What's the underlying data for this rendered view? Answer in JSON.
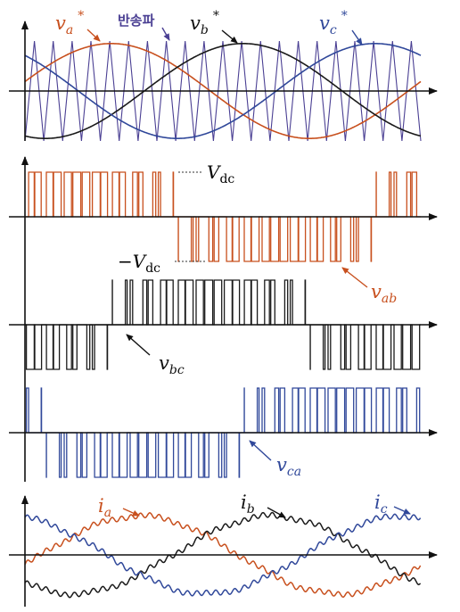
{
  "colors": {
    "phase_a": "#c8501e",
    "phase_b": "#1a1a1a",
    "phase_c": "#30489a",
    "carrier": "#4a3f93",
    "axis": "#111111",
    "dashed": "#333333"
  },
  "reference_panel": {
    "va_symbol": "v",
    "va_sub": "a",
    "va_star": "*",
    "vb_symbol": "v",
    "vb_sub": "b",
    "vb_star": "*",
    "vc_symbol": "v",
    "vc_sub": "c",
    "vc_star": "*",
    "carrier_label": "반송파"
  },
  "line_voltage_panel": {
    "vdc_symbol": "V",
    "vdc_sub": "dc",
    "neg_vdc_sign": "−",
    "neg_vdc_symbol": "V",
    "neg_vdc_sub": "dc",
    "vab_symbol": "v",
    "vab_sub": "ab",
    "vbc_symbol": "v",
    "vbc_sub": "bc",
    "vca_symbol": "v",
    "vca_sub": "ca"
  },
  "current_panel": {
    "ia_symbol": "i",
    "ia_sub": "a",
    "ib_symbol": "i",
    "ib_sub": "b",
    "ic_symbol": "i",
    "ic_sub": "c"
  }
}
